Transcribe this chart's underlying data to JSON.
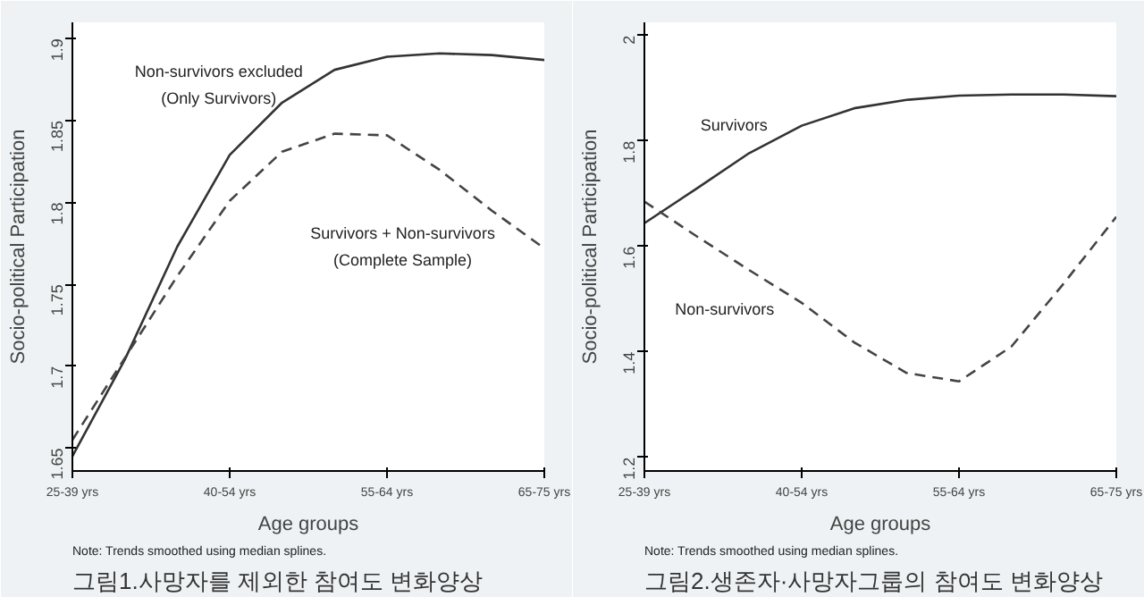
{
  "chart_data": [
    {
      "type": "line",
      "xlabel": "Age groups",
      "ylabel": "Socio-political Participation",
      "ylim": [
        1.636,
        1.91
      ],
      "categories": [
        "25-39 yrs",
        null,
        null,
        "40-54 yrs",
        null,
        null,
        "55-64 yrs",
        null,
        null,
        "65-75 yrs"
      ],
      "yticks": [
        1.65,
        1.7,
        1.75,
        1.8,
        1.85,
        1.9
      ],
      "grid": false,
      "series": [
        {
          "name": "Non-survivors excluded\n(Only Survivors)",
          "color": "#333333",
          "line_style": "solid",
          "values": [
            1.645,
            1.704,
            1.773,
            1.829,
            1.861,
            1.881,
            1.889,
            1.891,
            1.89,
            1.887
          ]
        },
        {
          "name": "Survivors + Non-survivors\n(Complete Sample)",
          "color": "#444444",
          "line_style": "dashed",
          "values": [
            1.655,
            1.705,
            1.755,
            1.801,
            1.831,
            1.842,
            1.841,
            1.82,
            1.795,
            1.772
          ]
        }
      ],
      "annotations": [
        "Note: Trends smoothed using median splines.",
        "그림1.사망자를 제외한 참여도 변화양상"
      ]
    },
    {
      "type": "line",
      "xlabel": "Age groups",
      "ylabel": "Socio-political Participation",
      "ylim": [
        1.174,
        2.025
      ],
      "categories": [
        "25-39 yrs",
        null,
        null,
        "40-54 yrs",
        null,
        null,
        "55-64 yrs",
        null,
        null,
        "65-75 yrs"
      ],
      "yticks": [
        1.2,
        1.4,
        1.6,
        1.8,
        2
      ],
      "grid": false,
      "series": [
        {
          "name": "Survivors",
          "color": "#333333",
          "line_style": "solid",
          "values": [
            1.644,
            1.71,
            1.777,
            1.829,
            1.862,
            1.878,
            1.886,
            1.888,
            1.888,
            1.885
          ]
        },
        {
          "name": "Non-survivors",
          "color": "#444444",
          "line_style": "dashed",
          "values": [
            1.685,
            1.619,
            1.555,
            1.493,
            1.418,
            1.36,
            1.344,
            1.41,
            1.53,
            1.656
          ]
        }
      ],
      "annotations": [
        "Note: Trends smoothed using median splines.",
        "그림2.생존자·사망자그룹의 참여도 변화양상"
      ]
    }
  ]
}
